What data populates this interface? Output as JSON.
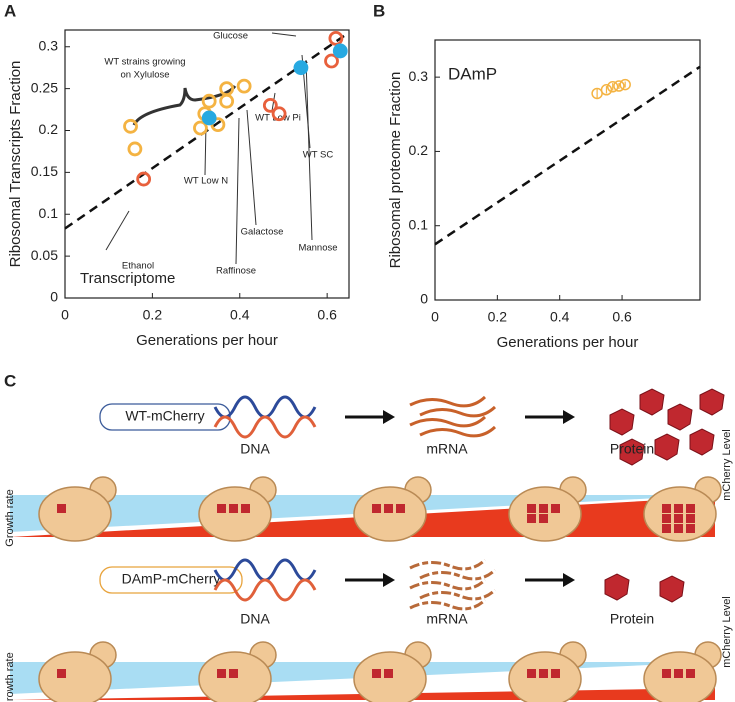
{
  "panel_labels": [
    "A",
    "B",
    "C"
  ],
  "chart_data": [
    {
      "type": "scatter",
      "ylabel": "Ribosomal Transcripts Fraction",
      "xlabel": "Generations per hour",
      "xlim": [
        0,
        0.65
      ],
      "ylim": [
        0,
        0.32
      ],
      "xticks": [
        0,
        0.2,
        0.4,
        0.6
      ],
      "yticks": [
        0,
        0.05,
        0.1,
        0.15,
        0.2,
        0.25,
        0.3
      ],
      "series": [
        {
          "color": "#f4b342",
          "marker": "open",
          "x": [
            0.15,
            0.16,
            0.31,
            0.32,
            0.33,
            0.35,
            0.37,
            0.37,
            0.41
          ],
          "values": [
            0.205,
            0.178,
            0.203,
            0.22,
            0.235,
            0.207,
            0.235,
            0.25,
            0.253
          ]
        },
        {
          "color": "#e8603c",
          "marker": "open",
          "x": [
            0.18,
            0.47,
            0.49,
            0.61,
            0.62
          ],
          "values": [
            0.142,
            0.23,
            0.22,
            0.283,
            0.31
          ]
        },
        {
          "color": "#27a9e1",
          "marker": "filled",
          "x": [
            0.33,
            0.54,
            0.63
          ],
          "values": [
            0.215,
            0.275,
            0.295
          ]
        }
      ],
      "fit_line": {
        "x": [
          0,
          0.65
        ],
        "values": [
          0.083,
          0.317
        ]
      },
      "annotations": [
        "Glucose",
        "WT strains growing",
        "on Xylulose",
        "WT Low Pi",
        "WT SC",
        "WT Low N",
        "Mannose",
        "Galactose",
        "Raffinose",
        "Ethanol",
        "Transcriptome"
      ]
    },
    {
      "type": "scatter",
      "ylabel": "Ribosomal proteome Fraction",
      "xlabel": "Generations per hour",
      "xlim": [
        0,
        0.85
      ],
      "ylim": [
        0,
        0.35
      ],
      "xticks": [
        0,
        0.2,
        0.4,
        0.6
      ],
      "yticks": [
        0,
        0.1,
        0.2,
        0.3
      ],
      "series": [
        {
          "color": "#f4b342",
          "marker": "open",
          "x": [
            0.52,
            0.55,
            0.57,
            0.59,
            0.61
          ],
          "values": [
            0.278,
            0.283,
            0.287,
            0.288,
            0.29
          ],
          "errors": [
            0.006,
            0.005,
            0.005,
            0.004,
            0.004
          ]
        }
      ],
      "fit_line": {
        "x": [
          0,
          0.85
        ],
        "values": [
          0.075,
          0.314
        ]
      },
      "annotations": [
        "DAmP"
      ]
    }
  ],
  "diagram": {
    "rows": [
      {
        "strain": "WT-mCherry",
        "steps": [
          "DNA",
          "mRNA",
          "Protein"
        ],
        "left_axis": "Growth rate",
        "right_axis": "mCherry Level"
      },
      {
        "strain": "DAmP-mCherry",
        "steps": [
          "DNA",
          "mRNA",
          "Protein"
        ],
        "left_axis": "Growth rate",
        "right_axis": "mCherry Level"
      }
    ]
  }
}
